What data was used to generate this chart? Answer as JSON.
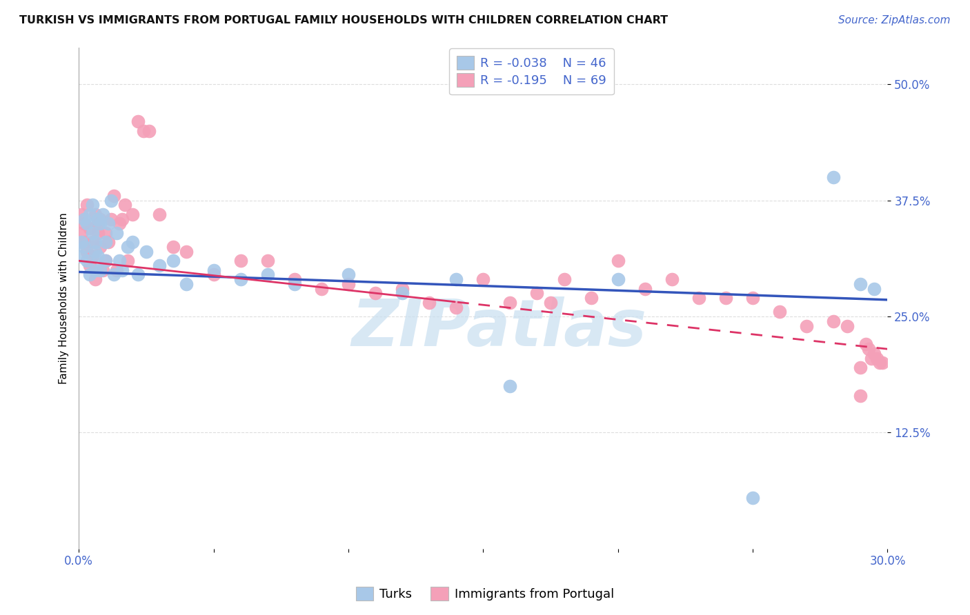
{
  "title": "TURKISH VS IMMIGRANTS FROM PORTUGAL FAMILY HOUSEHOLDS WITH CHILDREN CORRELATION CHART",
  "source": "Source: ZipAtlas.com",
  "ylabel": "Family Households with Children",
  "turks_color": "#a8c8e8",
  "turks_line_color": "#3355bb",
  "portugal_color": "#f4a0b8",
  "portugal_line_color": "#dd3366",
  "turks_R": -0.038,
  "turks_N": 46,
  "portugal_R": -0.195,
  "portugal_N": 69,
  "xmin": 0.0,
  "xmax": 0.3,
  "ymin": 0.0,
  "ymax": 0.54,
  "ytick_values": [
    0.125,
    0.25,
    0.375,
    0.5
  ],
  "ytick_labels": [
    "12.5%",
    "25.0%",
    "37.5%",
    "50.0%"
  ],
  "turks_x": [
    0.001,
    0.001,
    0.002,
    0.002,
    0.003,
    0.003,
    0.004,
    0.004,
    0.005,
    0.005,
    0.006,
    0.006,
    0.006,
    0.007,
    0.007,
    0.008,
    0.008,
    0.009,
    0.01,
    0.01,
    0.011,
    0.012,
    0.013,
    0.014,
    0.015,
    0.016,
    0.018,
    0.02,
    0.022,
    0.025,
    0.03,
    0.035,
    0.04,
    0.05,
    0.06,
    0.07,
    0.08,
    0.1,
    0.12,
    0.14,
    0.16,
    0.2,
    0.25,
    0.28,
    0.29,
    0.295
  ],
  "turks_y": [
    0.315,
    0.33,
    0.325,
    0.355,
    0.35,
    0.31,
    0.36,
    0.295,
    0.34,
    0.37,
    0.33,
    0.32,
    0.3,
    0.355,
    0.315,
    0.3,
    0.35,
    0.36,
    0.33,
    0.31,
    0.35,
    0.375,
    0.295,
    0.34,
    0.31,
    0.3,
    0.325,
    0.33,
    0.295,
    0.32,
    0.305,
    0.31,
    0.285,
    0.3,
    0.29,
    0.295,
    0.285,
    0.295,
    0.275,
    0.29,
    0.175,
    0.29,
    0.055,
    0.4,
    0.285,
    0.28
  ],
  "portugal_x": [
    0.001,
    0.001,
    0.002,
    0.002,
    0.003,
    0.003,
    0.004,
    0.004,
    0.005,
    0.005,
    0.006,
    0.006,
    0.007,
    0.007,
    0.008,
    0.008,
    0.009,
    0.01,
    0.01,
    0.011,
    0.012,
    0.013,
    0.014,
    0.015,
    0.016,
    0.017,
    0.018,
    0.02,
    0.022,
    0.024,
    0.026,
    0.03,
    0.035,
    0.04,
    0.05,
    0.06,
    0.07,
    0.08,
    0.09,
    0.1,
    0.11,
    0.12,
    0.13,
    0.14,
    0.15,
    0.16,
    0.17,
    0.175,
    0.18,
    0.19,
    0.2,
    0.21,
    0.22,
    0.23,
    0.24,
    0.25,
    0.26,
    0.27,
    0.28,
    0.285,
    0.29,
    0.29,
    0.292,
    0.293,
    0.294,
    0.295,
    0.296,
    0.297,
    0.298
  ],
  "portugal_y": [
    0.34,
    0.36,
    0.35,
    0.33,
    0.32,
    0.37,
    0.345,
    0.305,
    0.33,
    0.315,
    0.36,
    0.29,
    0.35,
    0.34,
    0.325,
    0.355,
    0.3,
    0.34,
    0.31,
    0.33,
    0.355,
    0.38,
    0.3,
    0.35,
    0.355,
    0.37,
    0.31,
    0.36,
    0.46,
    0.45,
    0.45,
    0.36,
    0.325,
    0.32,
    0.295,
    0.31,
    0.31,
    0.29,
    0.28,
    0.285,
    0.275,
    0.28,
    0.265,
    0.26,
    0.29,
    0.265,
    0.275,
    0.265,
    0.29,
    0.27,
    0.31,
    0.28,
    0.29,
    0.27,
    0.27,
    0.27,
    0.255,
    0.24,
    0.245,
    0.24,
    0.195,
    0.165,
    0.22,
    0.215,
    0.205,
    0.21,
    0.205,
    0.2,
    0.2
  ],
  "watermark": "ZIPatlas",
  "watermark_color": "#c8dff0",
  "background_color": "#ffffff",
  "grid_color": "#dddddd",
  "tick_color": "#4466cc",
  "title_fontsize": 11.5,
  "source_fontsize": 11,
  "legend_fontsize": 13,
  "ylabel_fontsize": 11,
  "ytick_fontsize": 12,
  "xtick_fontsize": 12
}
